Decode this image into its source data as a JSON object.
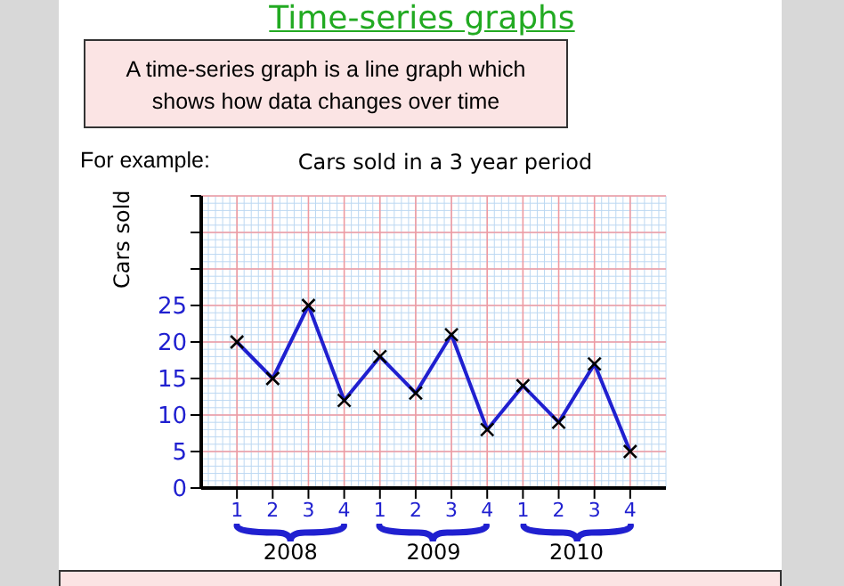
{
  "chart_data": {
    "type": "line",
    "title": "Cars sold in a 3 year period",
    "ylabel": "Cars sold",
    "categories": [
      "1",
      "2",
      "3",
      "4",
      "1",
      "2",
      "3",
      "4",
      "1",
      "2",
      "3",
      "4"
    ],
    "series": [
      {
        "color": "#2020d0",
        "values": [
          20,
          15,
          25,
          12,
          18,
          13,
          21,
          8,
          14,
          9,
          17,
          5
        ]
      }
    ],
    "ylim": [
      0,
      40
    ],
    "yticks": [
      0,
      5,
      10,
      15,
      20,
      25,
      {
        "value": 30,
        "label": null
      },
      {
        "value": 35,
        "label": null
      },
      {
        "value": 40,
        "label": null
      }
    ],
    "grid": true,
    "marker": "cross",
    "line_style": "solid",
    "annotations": [
      "Time-series graphs",
      "A time-series graph is a line graph which shows how data changes over time",
      "For example:",
      "2008",
      "2009",
      "2010"
    ]
  }
}
